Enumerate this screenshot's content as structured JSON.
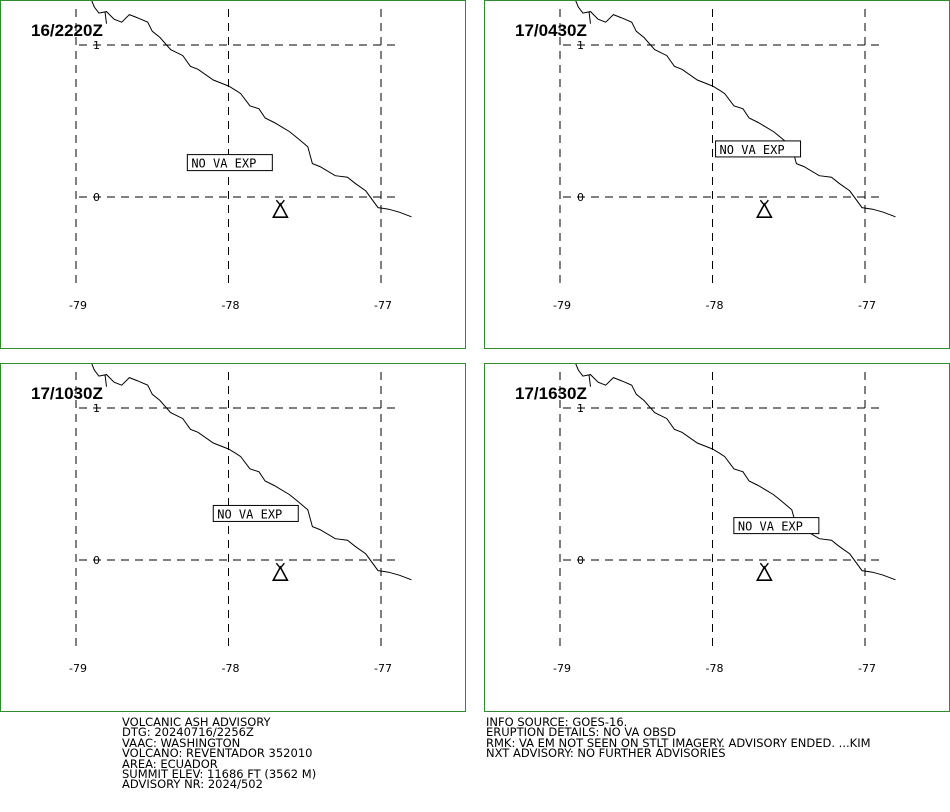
{
  "panels": [
    {
      "time": "16/2220Z",
      "label": "NO VA EXP",
      "label_pos": [
        -78.27,
        0.2
      ]
    },
    {
      "time": "17/0430Z",
      "label": "NO VA EXP",
      "label_pos": [
        -77.98,
        0.29
      ]
    },
    {
      "time": "17/1030Z",
      "label": "NO VA EXP",
      "label_pos": [
        -78.1,
        0.28
      ]
    },
    {
      "time": "17/1630Z",
      "label": "NO VA EXP",
      "label_pos": [
        -77.86,
        0.2
      ]
    }
  ],
  "map": {
    "lon_ticks": [
      "-79",
      "-78",
      "-77"
    ],
    "lat_ticks": [
      "1",
      "0"
    ],
    "volcano": {
      "lon": -77.66,
      "lat": -0.08
    },
    "coastline": [
      [
        -78.9,
        1.3
      ],
      [
        -78.88,
        1.25
      ],
      [
        -78.85,
        1.21
      ],
      [
        -78.8,
        1.22
      ],
      [
        -78.75,
        1.17
      ],
      [
        -78.7,
        1.15
      ],
      [
        -78.65,
        1.2
      ],
      [
        -78.6,
        1.18
      ],
      [
        -78.53,
        1.15
      ],
      [
        -78.5,
        1.09
      ],
      [
        -78.45,
        1.05
      ],
      [
        -78.38,
        0.97
      ],
      [
        -78.3,
        0.93
      ],
      [
        -78.25,
        0.86
      ],
      [
        -78.2,
        0.84
      ],
      [
        -78.1,
        0.77
      ],
      [
        -78.0,
        0.73
      ],
      [
        -77.95,
        0.7
      ],
      [
        -77.92,
        0.68
      ],
      [
        -77.86,
        0.6
      ],
      [
        -77.8,
        0.58
      ],
      [
        -77.76,
        0.52
      ],
      [
        -77.7,
        0.49
      ],
      [
        -77.6,
        0.43
      ],
      [
        -77.55,
        0.39
      ],
      [
        -77.48,
        0.33
      ],
      [
        -77.45,
        0.22
      ],
      [
        -77.4,
        0.2
      ],
      [
        -77.3,
        0.14
      ],
      [
        -77.22,
        0.13
      ],
      [
        -77.17,
        0.09
      ],
      [
        -77.1,
        0.04
      ],
      [
        -77.02,
        -0.07
      ],
      [
        -76.95,
        -0.08
      ],
      [
        -76.88,
        -0.1
      ],
      [
        -76.8,
        -0.13
      ]
    ]
  },
  "advisory_left": [
    "VOLCANIC ASH ADVISORY",
    "DTG: 20240716/2256Z",
    "VAAC: WASHINGTON",
    "VOLCANO: REVENTADOR 352010",
    "AREA: ECUADOR",
    "SUMMIT ELEV: 11686 FT (3562 M)",
    "ADVISORY NR: 2024/502"
  ],
  "advisory_right": [
    "INFO SOURCE: GOES-16.",
    "ERUPTION DETAILS: NO VA OBSD",
    "RMK: VA EM NOT SEEN ON STLT IMAGERY. ADVISORY ENDED. ...KIM",
    "NXT ADVISORY: NO FURTHER ADVISORIES"
  ],
  "colors": {
    "panel_border": "#2e8b2e",
    "lines": "#000000"
  }
}
